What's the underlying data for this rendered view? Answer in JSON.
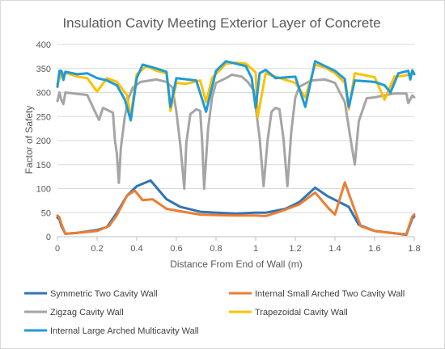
{
  "chart_data": {
    "type": "line",
    "title": "Insulation Cavity Meeting Exterior Layer of Concrete",
    "xlabel": "Distance From End of Wall (m)",
    "ylabel": "Factor of Safety",
    "xlim": [
      0,
      1.8
    ],
    "ylim": [
      0,
      400
    ],
    "xticks": [
      "0",
      "0.2",
      "0.4",
      "0.6",
      "0.8",
      "1",
      "1.2",
      "1.4",
      "1.6",
      "1.8"
    ],
    "yticks": [
      "0",
      "50",
      "100",
      "150",
      "200",
      "250",
      "300",
      "350",
      "400"
    ],
    "grid": "horizontal",
    "legend_position": "bottom",
    "series": [
      {
        "name": "Symmetric Two Cavity Wall",
        "color": "#2e75b6",
        "points": [
          [
            0,
            40
          ],
          [
            0.01,
            36
          ],
          [
            0.02,
            22
          ],
          [
            0.04,
            6
          ],
          [
            0.1,
            8
          ],
          [
            0.2,
            14
          ],
          [
            0.25,
            20
          ],
          [
            0.3,
            50
          ],
          [
            0.35,
            85
          ],
          [
            0.4,
            105
          ],
          [
            0.47,
            117
          ],
          [
            0.55,
            78
          ],
          [
            0.62,
            62
          ],
          [
            0.72,
            52
          ],
          [
            0.8,
            50
          ],
          [
            0.9,
            48
          ],
          [
            1.0,
            50
          ],
          [
            1.05,
            50
          ],
          [
            1.15,
            58
          ],
          [
            1.22,
            72
          ],
          [
            1.3,
            102
          ],
          [
            1.36,
            85
          ],
          [
            1.47,
            62
          ],
          [
            1.52,
            25
          ],
          [
            1.6,
            12
          ],
          [
            1.7,
            7
          ],
          [
            1.76,
            4
          ],
          [
            1.79,
            38
          ],
          [
            1.8,
            42
          ]
        ]
      },
      {
        "name": "Internal Small Arched Two Cavity Wall",
        "color": "#ed7d31",
        "points": [
          [
            0,
            44
          ],
          [
            0.01,
            40
          ],
          [
            0.02,
            26
          ],
          [
            0.04,
            6
          ],
          [
            0.1,
            8
          ],
          [
            0.2,
            12
          ],
          [
            0.26,
            22
          ],
          [
            0.3,
            45
          ],
          [
            0.35,
            85
          ],
          [
            0.39,
            96
          ],
          [
            0.43,
            76
          ],
          [
            0.48,
            78
          ],
          [
            0.55,
            58
          ],
          [
            0.62,
            53
          ],
          [
            0.72,
            46
          ],
          [
            0.8,
            45
          ],
          [
            0.9,
            44
          ],
          [
            1.0,
            44
          ],
          [
            1.05,
            43
          ],
          [
            1.12,
            52
          ],
          [
            1.22,
            67
          ],
          [
            1.3,
            92
          ],
          [
            1.37,
            58
          ],
          [
            1.4,
            46
          ],
          [
            1.45,
            113
          ],
          [
            1.5,
            55
          ],
          [
            1.53,
            22
          ],
          [
            1.6,
            12
          ],
          [
            1.7,
            7
          ],
          [
            1.76,
            5
          ],
          [
            1.79,
            42
          ],
          [
            1.8,
            46
          ]
        ]
      },
      {
        "name": "Zigzag Cavity Wall",
        "color": "#a5a5a5",
        "points": [
          [
            0,
            282
          ],
          [
            0.01,
            300
          ],
          [
            0.02,
            284
          ],
          [
            0.03,
            276
          ],
          [
            0.04,
            300
          ],
          [
            0.1,
            297
          ],
          [
            0.15,
            295
          ],
          [
            0.19,
            260
          ],
          [
            0.21,
            243
          ],
          [
            0.23,
            268
          ],
          [
            0.26,
            262
          ],
          [
            0.28,
            258
          ],
          [
            0.29,
            200
          ],
          [
            0.3,
            172
          ],
          [
            0.31,
            112
          ],
          [
            0.32,
            185
          ],
          [
            0.34,
            250
          ],
          [
            0.36,
            290
          ],
          [
            0.38,
            310
          ],
          [
            0.42,
            322
          ],
          [
            0.5,
            327
          ],
          [
            0.55,
            322
          ],
          [
            0.58,
            310
          ],
          [
            0.6,
            260
          ],
          [
            0.62,
            190
          ],
          [
            0.64,
            100
          ],
          [
            0.65,
            195
          ],
          [
            0.67,
            255
          ],
          [
            0.7,
            265
          ],
          [
            0.72,
            262
          ],
          [
            0.73,
            200
          ],
          [
            0.74,
            100
          ],
          [
            0.76,
            225
          ],
          [
            0.78,
            290
          ],
          [
            0.8,
            320
          ],
          [
            0.85,
            330
          ],
          [
            0.88,
            337
          ],
          [
            0.93,
            333
          ],
          [
            0.96,
            322
          ],
          [
            0.99,
            305
          ],
          [
            1.0,
            270
          ],
          [
            1.02,
            205
          ],
          [
            1.04,
            105
          ],
          [
            1.06,
            200
          ],
          [
            1.08,
            260
          ],
          [
            1.1,
            268
          ],
          [
            1.12,
            265
          ],
          [
            1.14,
            205
          ],
          [
            1.16,
            105
          ],
          [
            1.18,
            220
          ],
          [
            1.2,
            290
          ],
          [
            1.22,
            312
          ],
          [
            1.28,
            325
          ],
          [
            1.35,
            327
          ],
          [
            1.4,
            320
          ],
          [
            1.45,
            280
          ],
          [
            1.48,
            200
          ],
          [
            1.5,
            150
          ],
          [
            1.52,
            240
          ],
          [
            1.56,
            288
          ],
          [
            1.6,
            290
          ],
          [
            1.7,
            298
          ],
          [
            1.76,
            298
          ],
          [
            1.77,
            278
          ],
          [
            1.79,
            294
          ],
          [
            1.8,
            290
          ]
        ]
      },
      {
        "name": "Trapezoidal Cavity Wall",
        "color": "#ffc000",
        "points": [
          [
            0,
            318
          ],
          [
            0.02,
            340
          ],
          [
            0.05,
            340
          ],
          [
            0.1,
            333
          ],
          [
            0.15,
            330
          ],
          [
            0.2,
            302
          ],
          [
            0.25,
            330
          ],
          [
            0.3,
            322
          ],
          [
            0.35,
            295
          ],
          [
            0.37,
            250
          ],
          [
            0.4,
            338
          ],
          [
            0.45,
            355
          ],
          [
            0.5,
            345
          ],
          [
            0.55,
            340
          ],
          [
            0.57,
            262
          ],
          [
            0.6,
            320
          ],
          [
            0.65,
            318
          ],
          [
            0.72,
            325
          ],
          [
            0.75,
            280
          ],
          [
            0.78,
            330
          ],
          [
            0.85,
            360
          ],
          [
            0.9,
            362
          ],
          [
            0.95,
            360
          ],
          [
            1.0,
            342
          ],
          [
            1.01,
            248
          ],
          [
            1.05,
            340
          ],
          [
            1.1,
            333
          ],
          [
            1.2,
            320
          ],
          [
            1.25,
            290
          ],
          [
            1.3,
            358
          ],
          [
            1.35,
            352
          ],
          [
            1.4,
            340
          ],
          [
            1.45,
            320
          ],
          [
            1.47,
            265
          ],
          [
            1.5,
            340
          ],
          [
            1.6,
            332
          ],
          [
            1.65,
            285
          ],
          [
            1.7,
            333
          ],
          [
            1.75,
            335
          ],
          [
            1.8,
            340
          ]
        ]
      },
      {
        "name": "Internal Large Arched Multicavity Wall",
        "color": "#1f9bd7",
        "points": [
          [
            0,
            312
          ],
          [
            0.01,
            345
          ],
          [
            0.02,
            345
          ],
          [
            0.03,
            326
          ],
          [
            0.04,
            343
          ],
          [
            0.1,
            338
          ],
          [
            0.15,
            340
          ],
          [
            0.2,
            330
          ],
          [
            0.25,
            325
          ],
          [
            0.3,
            315
          ],
          [
            0.34,
            285
          ],
          [
            0.37,
            242
          ],
          [
            0.4,
            330
          ],
          [
            0.43,
            358
          ],
          [
            0.5,
            350
          ],
          [
            0.55,
            343
          ],
          [
            0.57,
            270
          ],
          [
            0.6,
            330
          ],
          [
            0.7,
            325
          ],
          [
            0.75,
            260
          ],
          [
            0.8,
            345
          ],
          [
            0.85,
            365
          ],
          [
            0.9,
            360
          ],
          [
            0.95,
            355
          ],
          [
            0.98,
            330
          ],
          [
            1.0,
            268
          ],
          [
            1.02,
            340
          ],
          [
            1.05,
            347
          ],
          [
            1.1,
            330
          ],
          [
            1.2,
            333
          ],
          [
            1.25,
            270
          ],
          [
            1.3,
            365
          ],
          [
            1.35,
            355
          ],
          [
            1.4,
            345
          ],
          [
            1.45,
            328
          ],
          [
            1.47,
            270
          ],
          [
            1.5,
            325
          ],
          [
            1.6,
            322
          ],
          [
            1.65,
            315
          ],
          [
            1.68,
            300
          ],
          [
            1.72,
            340
          ],
          [
            1.77,
            345
          ],
          [
            1.78,
            327
          ],
          [
            1.79,
            346
          ],
          [
            1.8,
            338
          ]
        ]
      }
    ]
  }
}
